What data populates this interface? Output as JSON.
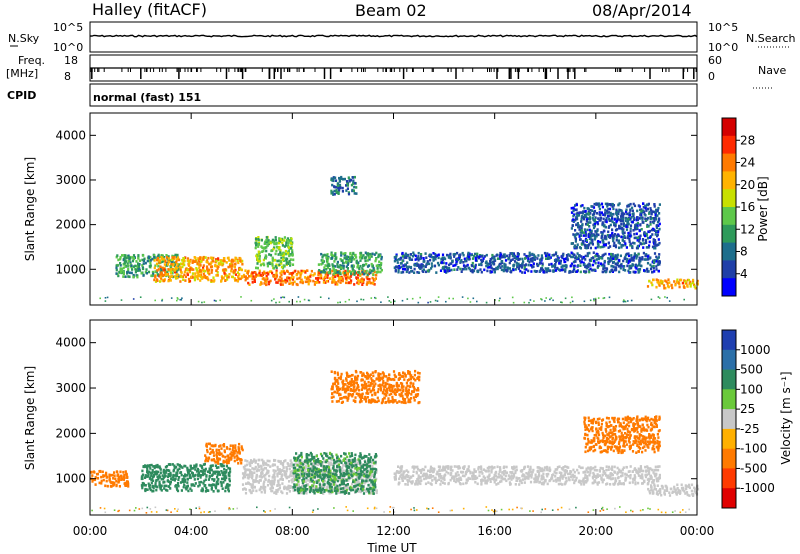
{
  "header": {
    "station": "Halley (fitACF)",
    "beam": "Beam 02",
    "date": "08/Apr/2014"
  },
  "strip_labels": {
    "nsky": "N.Sky",
    "freq_top": "Freq.",
    "freq_unit": "[MHz]",
    "cpid": "CPID",
    "nsearch": "N.Search",
    "nave": "Nave",
    "cpid_value": "normal (fast) 151"
  },
  "strip_ticks": {
    "nsky_top": "10^5",
    "nsky_bot": "10^0",
    "nsearch_top": "10^5",
    "nsearch_bot": "10^0",
    "freq_top": "18",
    "freq_bot": "8",
    "nave_top": "60",
    "nave_bot": "0"
  },
  "colorbars": {
    "power": {
      "label": "Power [dB]",
      "ticks": [
        "28",
        "24",
        "20",
        "16",
        "12",
        "8",
        "4"
      ],
      "colors": [
        "#d40000",
        "#ff2a00",
        "#ff7a00",
        "#ffb300",
        "#c8e000",
        "#5ec84a",
        "#2e9a5a",
        "#1e6e8c",
        "#1f3fa8",
        "#0000ff"
      ]
    },
    "velocity": {
      "label": "Velocity [m s⁻¹]",
      "ticks": [
        "1000",
        "500",
        "100",
        "25",
        "-25",
        "-100",
        "-500",
        "-1000"
      ],
      "colors": [
        "#1f3fb0",
        "#2b6fa8",
        "#2e8b5e",
        "#6ac93a",
        "#c8c8c8",
        "#ffb000",
        "#ff7a00",
        "#ff3a00",
        "#e00000"
      ]
    }
  },
  "chart_data": [
    {
      "type": "heatmap",
      "panel": "power",
      "ylabel": "Slant Range [km]",
      "yticks": [
        "4000",
        "3000",
        "2000",
        "1000"
      ],
      "ylim": [
        200,
        4500
      ],
      "xlim": [
        "00:00",
        "24:00"
      ],
      "regions": [
        {
          "t": [
            1.0,
            3.5
          ],
          "r": [
            850,
            1350
          ],
          "value": 12
        },
        {
          "t": [
            2.5,
            6.0
          ],
          "r": [
            750,
            1300
          ],
          "value": 22
        },
        {
          "t": [
            6.0,
            11.3
          ],
          "r": [
            680,
            1000
          ],
          "value": 24
        },
        {
          "t": [
            6.5,
            8.0
          ],
          "r": [
            1050,
            1750
          ],
          "value": 14
        },
        {
          "t": [
            9.0,
            11.5
          ],
          "r": [
            900,
            1400
          ],
          "value": 12
        },
        {
          "t": [
            9.5,
            10.5
          ],
          "r": [
            2700,
            3100
          ],
          "value": 8
        },
        {
          "t": [
            12.0,
            22.5
          ],
          "r": [
            950,
            1400
          ],
          "value": 6
        },
        {
          "t": [
            19.0,
            22.5
          ],
          "r": [
            1500,
            2500
          ],
          "value": 6
        },
        {
          "t": [
            22.0,
            24.0
          ],
          "r": [
            600,
            800
          ],
          "value": 22
        }
      ]
    },
    {
      "type": "heatmap",
      "panel": "velocity",
      "ylabel": "Slant Range [km]",
      "xlabel": "Time UT",
      "yticks": [
        "4000",
        "3000",
        "2000",
        "1000"
      ],
      "ylim": [
        200,
        4500
      ],
      "xlim": [
        "00:00",
        "24:00"
      ],
      "xticks": [
        "00:00",
        "04:00",
        "08:00",
        "12:00",
        "16:00",
        "20:00",
        "00:00"
      ],
      "regions": [
        {
          "t": [
            0.0,
            1.5
          ],
          "r": [
            850,
            1200
          ],
          "value": -200
        },
        {
          "t": [
            2.0,
            5.5
          ],
          "r": [
            750,
            1350
          ],
          "value": 150
        },
        {
          "t": [
            4.5,
            6.0
          ],
          "r": [
            1350,
            1800
          ],
          "value": -200
        },
        {
          "t": [
            6.0,
            11.3
          ],
          "r": [
            700,
            1450
          ],
          "value": 0
        },
        {
          "t": [
            8.0,
            11.3
          ],
          "r": [
            700,
            1600
          ],
          "value": 120
        },
        {
          "t": [
            9.5,
            13.0
          ],
          "r": [
            2700,
            3400
          ],
          "value": -300
        },
        {
          "t": [
            12.0,
            22.5
          ],
          "r": [
            900,
            1300
          ],
          "value": 0
        },
        {
          "t": [
            19.5,
            22.5
          ],
          "r": [
            1600,
            2400
          ],
          "value": -300
        },
        {
          "t": [
            22.0,
            24.0
          ],
          "r": [
            650,
            900
          ],
          "value": 0
        }
      ]
    }
  ]
}
